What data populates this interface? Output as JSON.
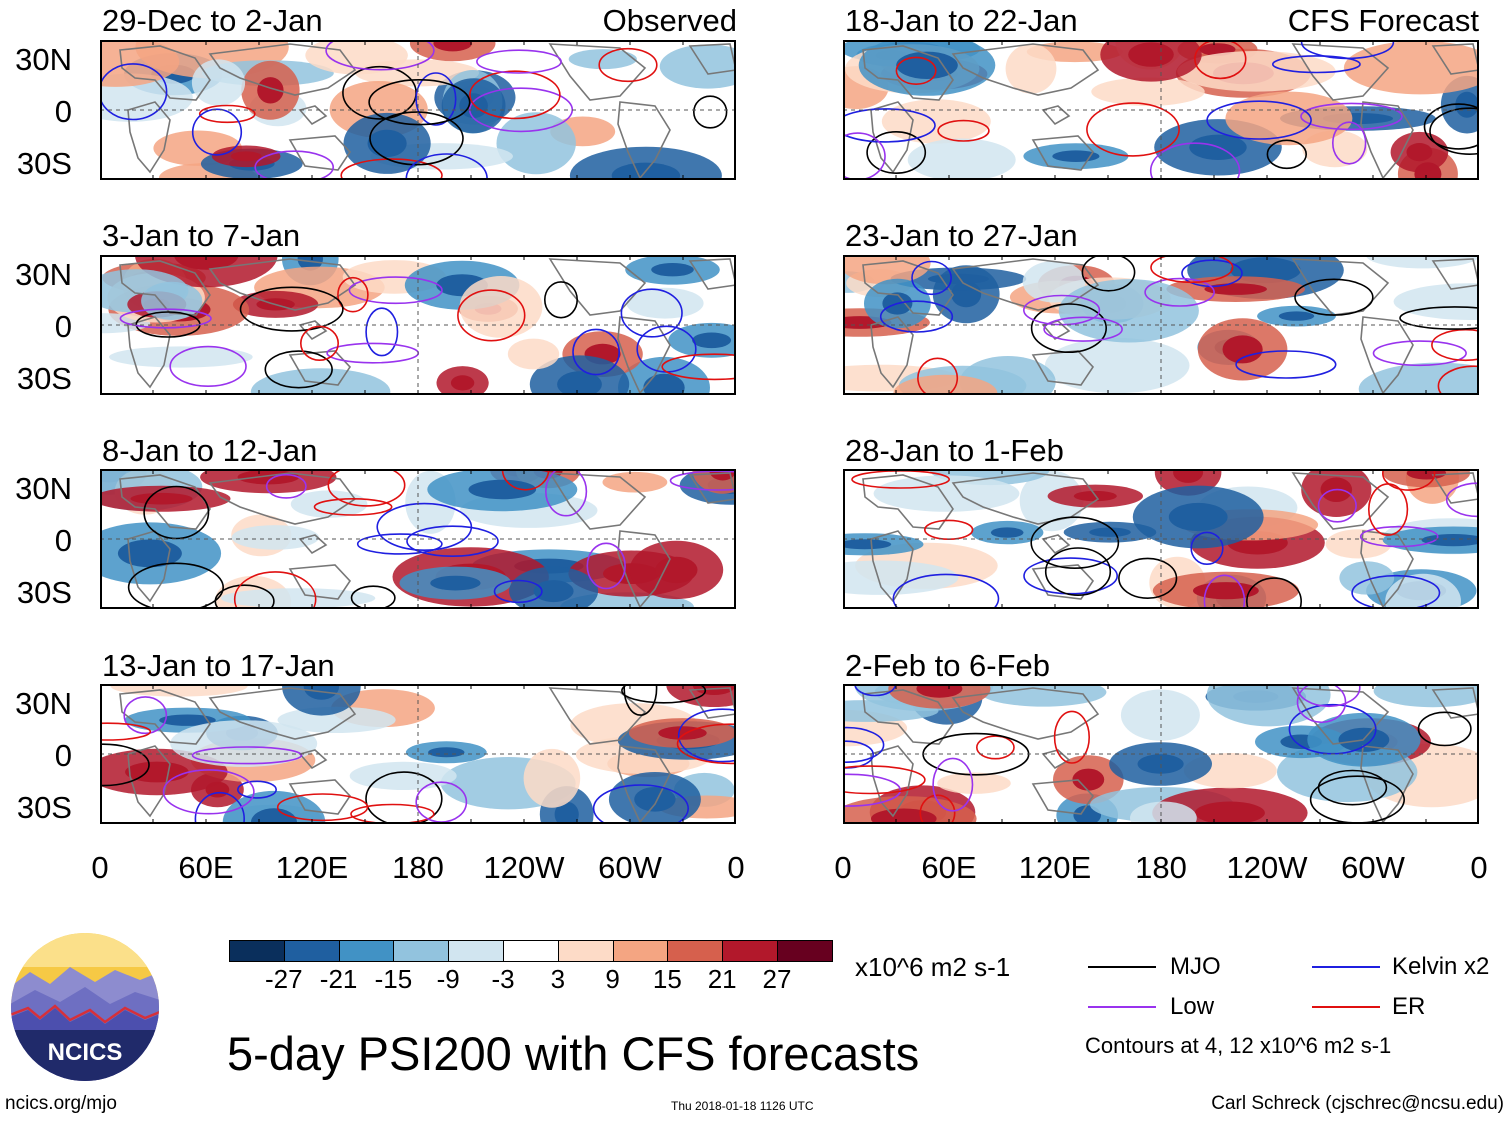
{
  "panels": {
    "observed_label": "Observed",
    "forecast_label": "CFS Forecast",
    "left": [
      {
        "title": "29-Dec to 2-Jan"
      },
      {
        "title": "3-Jan to 7-Jan"
      },
      {
        "title": "8-Jan to 12-Jan"
      },
      {
        "title": "13-Jan to 17-Jan"
      }
    ],
    "right": [
      {
        "title": "18-Jan to 22-Jan"
      },
      {
        "title": "23-Jan to 27-Jan"
      },
      {
        "title": "28-Jan to 1-Feb"
      },
      {
        "title": "2-Feb to 6-Feb"
      }
    ]
  },
  "axes": {
    "lat_labels": [
      "30N",
      "0",
      "30S"
    ],
    "lon_labels": [
      "0",
      "60E",
      "120E",
      "180",
      "120W",
      "60W",
      "0"
    ]
  },
  "colorbar": {
    "colors": [
      "#0a2f5c",
      "#1f5fa0",
      "#4192c5",
      "#92c3de",
      "#d1e5f0",
      "#ffffff",
      "#fddbc7",
      "#f4a582",
      "#d6604d",
      "#b2182b",
      "#67001f"
    ],
    "ticks": [
      "-27",
      "-21",
      "-15",
      "-9",
      "-3",
      "3",
      "9",
      "15",
      "21",
      "27"
    ],
    "units": "x10^6 m2 s-1"
  },
  "legend": {
    "items": [
      {
        "label": "MJO",
        "color": "#000000"
      },
      {
        "label": "Kelvin x2",
        "color": "#1f1fe0"
      },
      {
        "label": "Low",
        "color": "#9933ee"
      },
      {
        "label": "ER",
        "color": "#e01010"
      }
    ],
    "contours_note": "Contours at 4, 12 x10^6 m2 s-1"
  },
  "main_title": "5-day PSI200 with CFS forecasts",
  "logo": {
    "text": "NCICS"
  },
  "footer": {
    "url": "ncics.org/mjo",
    "timestamp": "Thu 2018-01-18 1126 UTC",
    "credit": "Carl Schreck (cjschrec@ncsu.edu)"
  }
}
